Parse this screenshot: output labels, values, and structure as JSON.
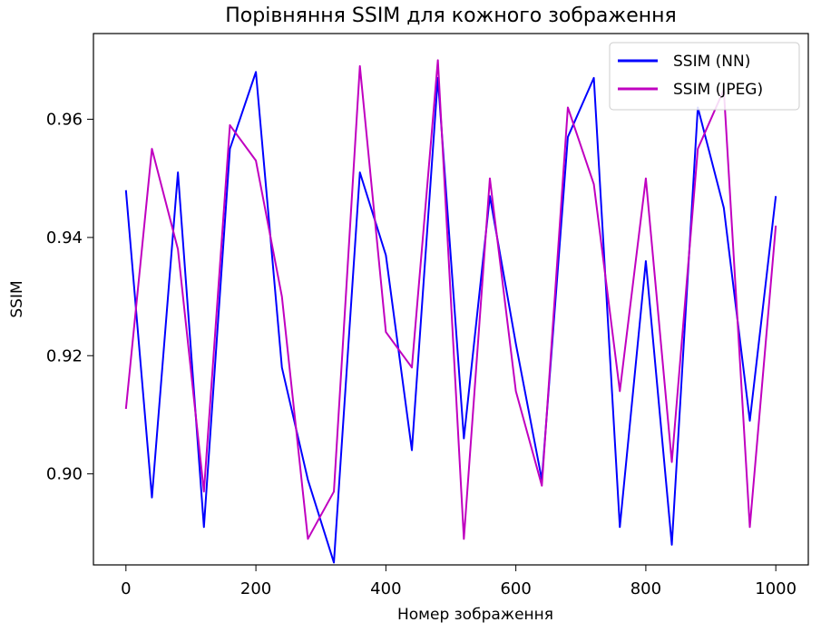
{
  "chart_data": {
    "type": "line",
    "title": "Порівняння SSIM для кожного зображення",
    "xlabel": "Номер зображення",
    "ylabel": "SSIM",
    "xlim": [
      -50,
      1050
    ],
    "ylim": [
      0.8846,
      0.9745
    ],
    "xticks": [
      0,
      200,
      400,
      600,
      800,
      1000
    ],
    "yticks": [
      0.9,
      0.92,
      0.94,
      0.96
    ],
    "xtick_labels": [
      "0",
      "200",
      "400",
      "600",
      "800",
      "1000"
    ],
    "ytick_labels": [
      "0.90",
      "0.92",
      "0.94",
      "0.96"
    ],
    "legend": {
      "position": "top-right"
    },
    "grid": false,
    "x": [
      0,
      40,
      80,
      120,
      160,
      200,
      240,
      280,
      320,
      360,
      400,
      440,
      480,
      520,
      560,
      600,
      640,
      680,
      720,
      760,
      800,
      840,
      880,
      920,
      960,
      1000
    ],
    "series": [
      {
        "name": "SSIM (NN)",
        "color": "#0000ff",
        "values": [
          0.948,
          0.896,
          0.951,
          0.891,
          0.955,
          0.968,
          0.918,
          0.899,
          0.885,
          0.951,
          0.937,
          0.904,
          0.967,
          0.906,
          0.947,
          0.922,
          0.899,
          0.957,
          0.967,
          0.891,
          0.936,
          0.888,
          0.962,
          0.945,
          0.909,
          0.947
        ]
      },
      {
        "name": "SSIM (JPEG)",
        "color": "#c000c0",
        "values": [
          0.911,
          0.955,
          0.938,
          0.897,
          0.959,
          0.953,
          0.93,
          0.889,
          0.897,
          0.969,
          0.924,
          0.918,
          0.97,
          0.889,
          0.95,
          0.914,
          0.898,
          0.962,
          0.949,
          0.914,
          0.95,
          0.902,
          0.955,
          0.965,
          0.891,
          0.942
        ]
      }
    ]
  }
}
